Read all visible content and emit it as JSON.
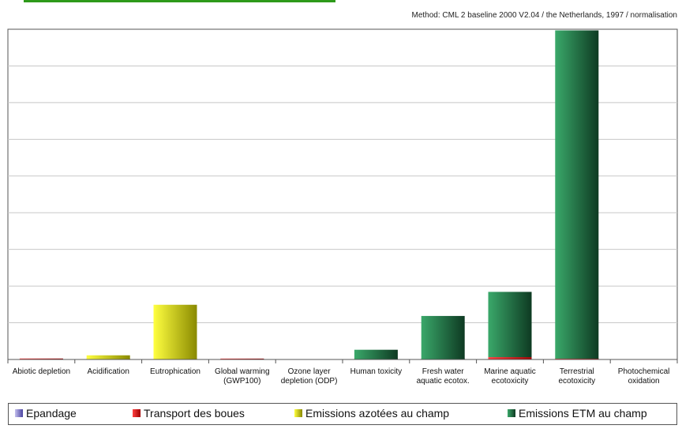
{
  "header": {
    "method": "Method: CML 2 baseline 2000 V2.04 /  the Netherlands, 1997 / normalisation"
  },
  "colors": {
    "Epandage": "#7b72c8",
    "Transport des boues": "#d40000",
    "Emissions azotées au champ": "#f2f200",
    "Emissions ETM au champ": "#2e8b57",
    "grid": "#c8c8c8",
    "accent": "#2e9a1a"
  },
  "chart_data": {
    "type": "bar",
    "stacked": true,
    "grid": true,
    "legend_position": "bottom",
    "ylim": [
      0,
      85
    ],
    "categories": [
      [
        "Abiotic depletion"
      ],
      [
        "Acidification"
      ],
      [
        "Eutrophication"
      ],
      [
        "Global warming",
        "(GWP100)"
      ],
      [
        "Ozone layer",
        "depletion (ODP)"
      ],
      [
        "Human toxicity"
      ],
      [
        "Fresh water",
        "aquatic ecotox."
      ],
      [
        "Marine aquatic",
        "ecotoxicity"
      ],
      [
        "Terrestrial",
        "ecotoxicity"
      ],
      [
        "Photochemical",
        "oxidation"
      ]
    ],
    "series": [
      {
        "name": "Epandage",
        "values": [
          0.05,
          0.02,
          0.03,
          0.03,
          0,
          0.05,
          0.05,
          0.1,
          0.1,
          0
        ]
      },
      {
        "name": "Transport des boues",
        "values": [
          0.2,
          0.05,
          0.05,
          0.2,
          0,
          0.05,
          0.05,
          0.5,
          0.1,
          0
        ]
      },
      {
        "name": "Emissions azotées au champ",
        "values": [
          0,
          1.0,
          14.0,
          0,
          0,
          0,
          0,
          0,
          0,
          0
        ]
      },
      {
        "name": "Emissions ETM au champ",
        "values": [
          0,
          0,
          0,
          0,
          0,
          2.4,
          11.1,
          16.8,
          84.5,
          0
        ]
      }
    ]
  }
}
